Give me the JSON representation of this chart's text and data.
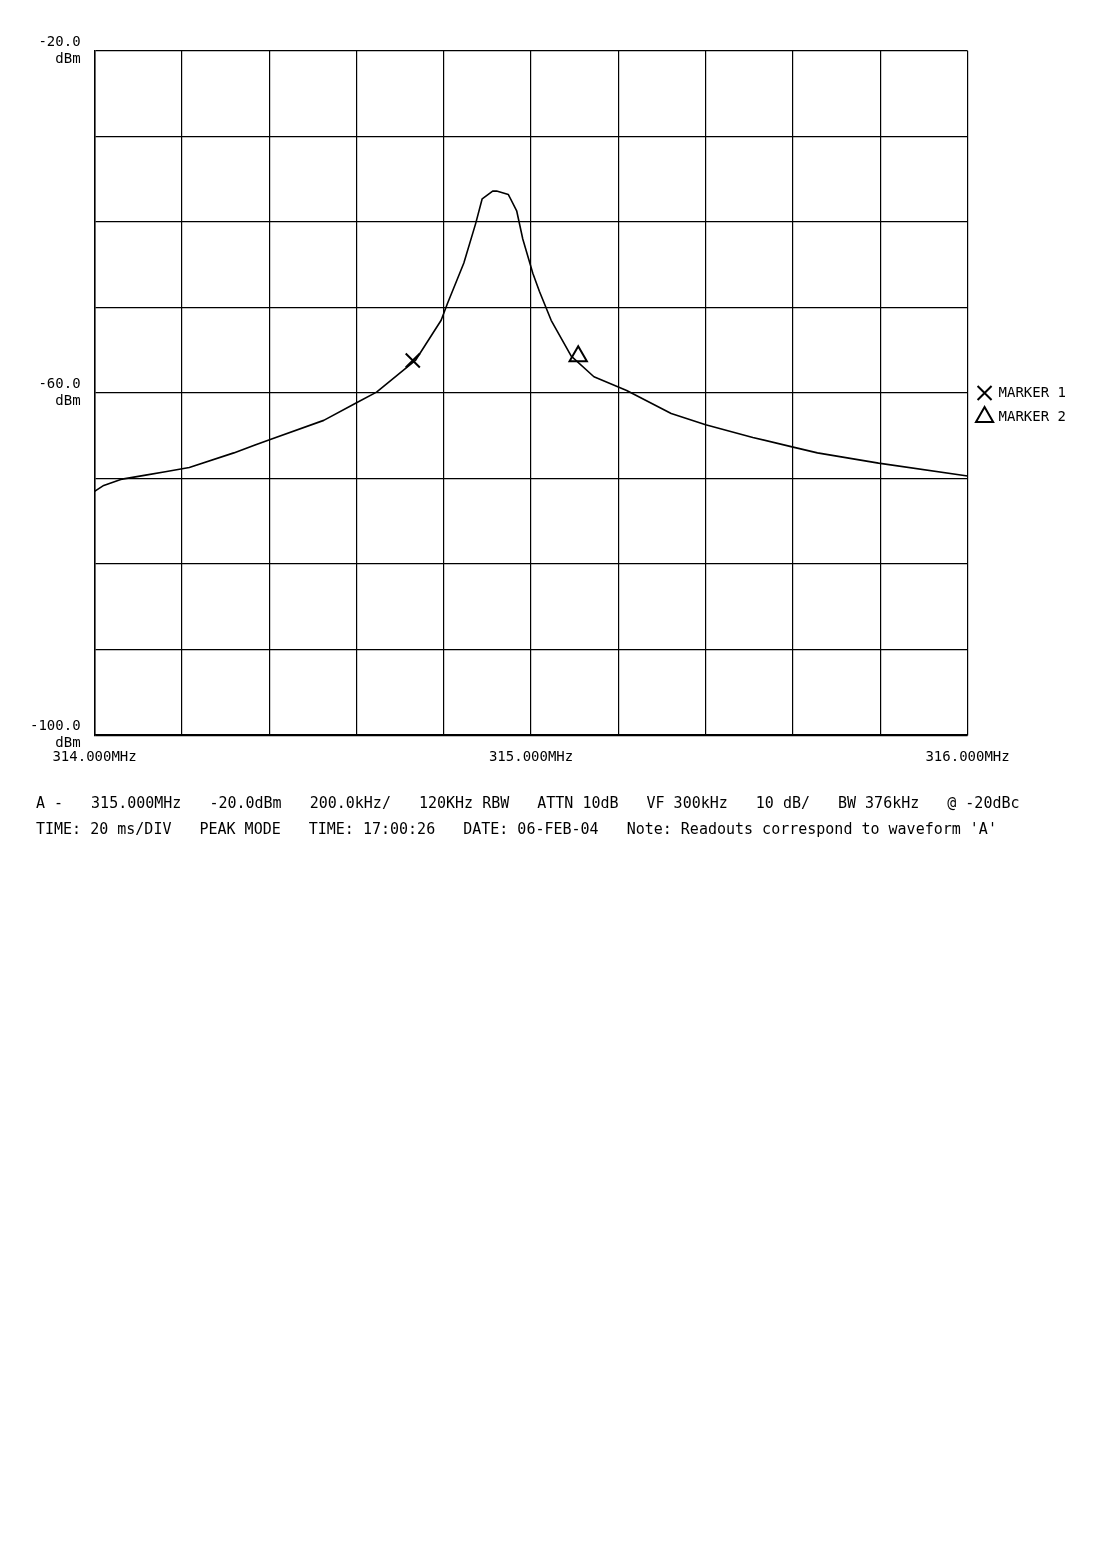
{
  "chart_data": {
    "type": "line",
    "xlim": [
      314,
      316
    ],
    "xticks": [
      {
        "value": 314,
        "label": "314.000MHz"
      },
      {
        "value": 314.2,
        "label": null
      },
      {
        "value": 314.4,
        "label": null
      },
      {
        "value": 314.6,
        "label": null
      },
      {
        "value": 314.8,
        "label": null
      },
      {
        "value": 315,
        "label": "315.000MHz"
      },
      {
        "value": 315.2,
        "label": null
      },
      {
        "value": 315.4,
        "label": null
      },
      {
        "value": 315.6,
        "label": null
      },
      {
        "value": 315.8,
        "label": null
      },
      {
        "value": 316,
        "label": "316.000MHz"
      }
    ],
    "ylim": [
      -100,
      -20
    ],
    "yticks": [
      {
        "value": -100,
        "label": "-100.0 dBm"
      },
      {
        "value": -90,
        "label": null
      },
      {
        "value": -80,
        "label": null
      },
      {
        "value": -70,
        "label": null
      },
      {
        "value": -60,
        "label": "-60.0 dBm"
      },
      {
        "value": -50,
        "label": null
      },
      {
        "value": -40,
        "label": null
      },
      {
        "value": -30,
        "label": null
      },
      {
        "value": -20,
        "label": "-20.0 dBm"
      }
    ],
    "grid": true,
    "legend": "right",
    "series": [
      {
        "color": "#000000",
        "x": [
          314.0,
          314.021,
          314.06,
          314.117,
          314.162,
          314.217,
          314.319,
          314.404,
          314.525,
          314.598,
          314.646,
          314.735,
          314.794,
          314.808,
          314.846,
          314.873,
          314.888,
          314.912,
          314.921,
          314.948,
          314.967,
          314.981,
          315.004,
          315.019,
          315.046,
          315.092,
          315.144,
          315.219,
          315.321,
          315.4,
          315.508,
          315.598,
          315.656,
          315.796,
          316.0
        ],
        "values": [
          -71.5,
          -70.8,
          -70.1,
          -69.6,
          -69.2,
          -68.7,
          -67.0,
          -65.4,
          -63.2,
          -61.2,
          -59.9,
          -56.2,
          -51.5,
          -49.6,
          -44.8,
          -40.2,
          -37.3,
          -36.4,
          -36.4,
          -36.8,
          -38.7,
          -42.0,
          -46.0,
          -48.1,
          -51.5,
          -55.7,
          -58.1,
          -59.7,
          -62.4,
          -63.7,
          -65.2,
          -66.3,
          -67.0,
          -68.2,
          -69.7
        ]
      },
      {
        "type": "scatter",
        "name": "MARKER 1",
        "marker": "cross",
        "color": "#000000",
        "x": [
          314.729
        ],
        "values": [
          -56.2
        ]
      },
      {
        "type": "scatter",
        "name": "MARKER 2",
        "marker": "triangle",
        "color": "#000000",
        "x": [
          315.108
        ],
        "values": [
          -55.7
        ]
      }
    ],
    "annotations": [
      "A -",
      "315.000MHz",
      "-20.0dBm",
      "200.0kHz/",
      "120KHz RBW",
      "ATTN 10dB",
      "VF 300kHz",
      "10 dB/",
      "BW 376kHz",
      "@ -20dBc",
      "TIME: 20 ms/DIV",
      "PEAK MODE",
      "TIME: 17:00:26",
      "DATE: 06-FEB-04",
      "Note: Readouts correspond to waveform 'A'"
    ]
  }
}
